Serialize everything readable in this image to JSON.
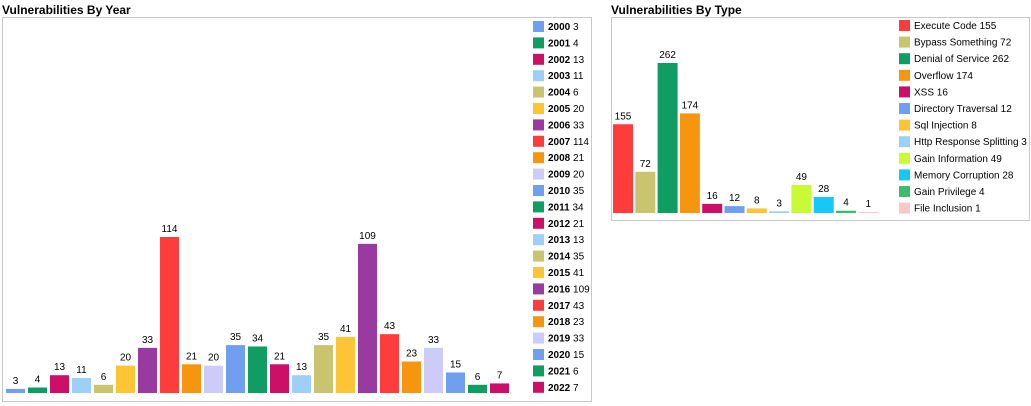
{
  "chart_data": [
    {
      "type": "bar",
      "title": "Vulnerabilities By Year",
      "xlabel": "",
      "ylabel": "",
      "ylim": [
        0,
        120
      ],
      "legend_position": "right",
      "categories": [
        "2000",
        "2001",
        "2002",
        "2003",
        "2004",
        "2005",
        "2006",
        "2007",
        "2008",
        "2009",
        "2010",
        "2011",
        "2012",
        "2013",
        "2014",
        "2015",
        "2016",
        "2017",
        "2018",
        "2019",
        "2020",
        "2021",
        "2022"
      ],
      "values": [
        3,
        4,
        13,
        11,
        6,
        20,
        33,
        114,
        21,
        20,
        35,
        34,
        21,
        13,
        35,
        41,
        109,
        43,
        23,
        33,
        15,
        6,
        7
      ],
      "colors": [
        "#6f9fee",
        "#0f9d63",
        "#cc0f67",
        "#9ecff7",
        "#c9c56f",
        "#fdc536",
        "#983aa0",
        "#fe3c3c",
        "#f6960f",
        "#cdccf8",
        "#6f9fee",
        "#0f9d63",
        "#cc0f67",
        "#9ecff7",
        "#c9c56f",
        "#fdc536",
        "#983aa0",
        "#fe3c3c",
        "#f6960f",
        "#cdccf8",
        "#6f9fee",
        "#0f9d63",
        "#cc0f67"
      ]
    },
    {
      "type": "bar",
      "title": "Vulnerabilities By Type",
      "xlabel": "",
      "ylabel": "",
      "ylim": [
        0,
        280
      ],
      "legend_position": "right",
      "categories": [
        "Execute Code",
        "Bypass Something",
        "Denial of Service",
        "Overflow",
        "XSS",
        "Directory Traversal",
        "Sql Injection",
        "Http Response Splitting",
        "Gain Information",
        "Memory Corruption",
        "Gain Privilege",
        "File Inclusion"
      ],
      "values": [
        155,
        72,
        262,
        174,
        16,
        12,
        8,
        3,
        49,
        28,
        4,
        1
      ],
      "colors": [
        "#fe3c3c",
        "#c9c56f",
        "#0f9d63",
        "#f6960f",
        "#cc0f67",
        "#6f9fee",
        "#fdc536",
        "#9ecff7",
        "#c8fb36",
        "#16c8f6",
        "#3cbc6c",
        "#f8c8c8"
      ]
    }
  ]
}
